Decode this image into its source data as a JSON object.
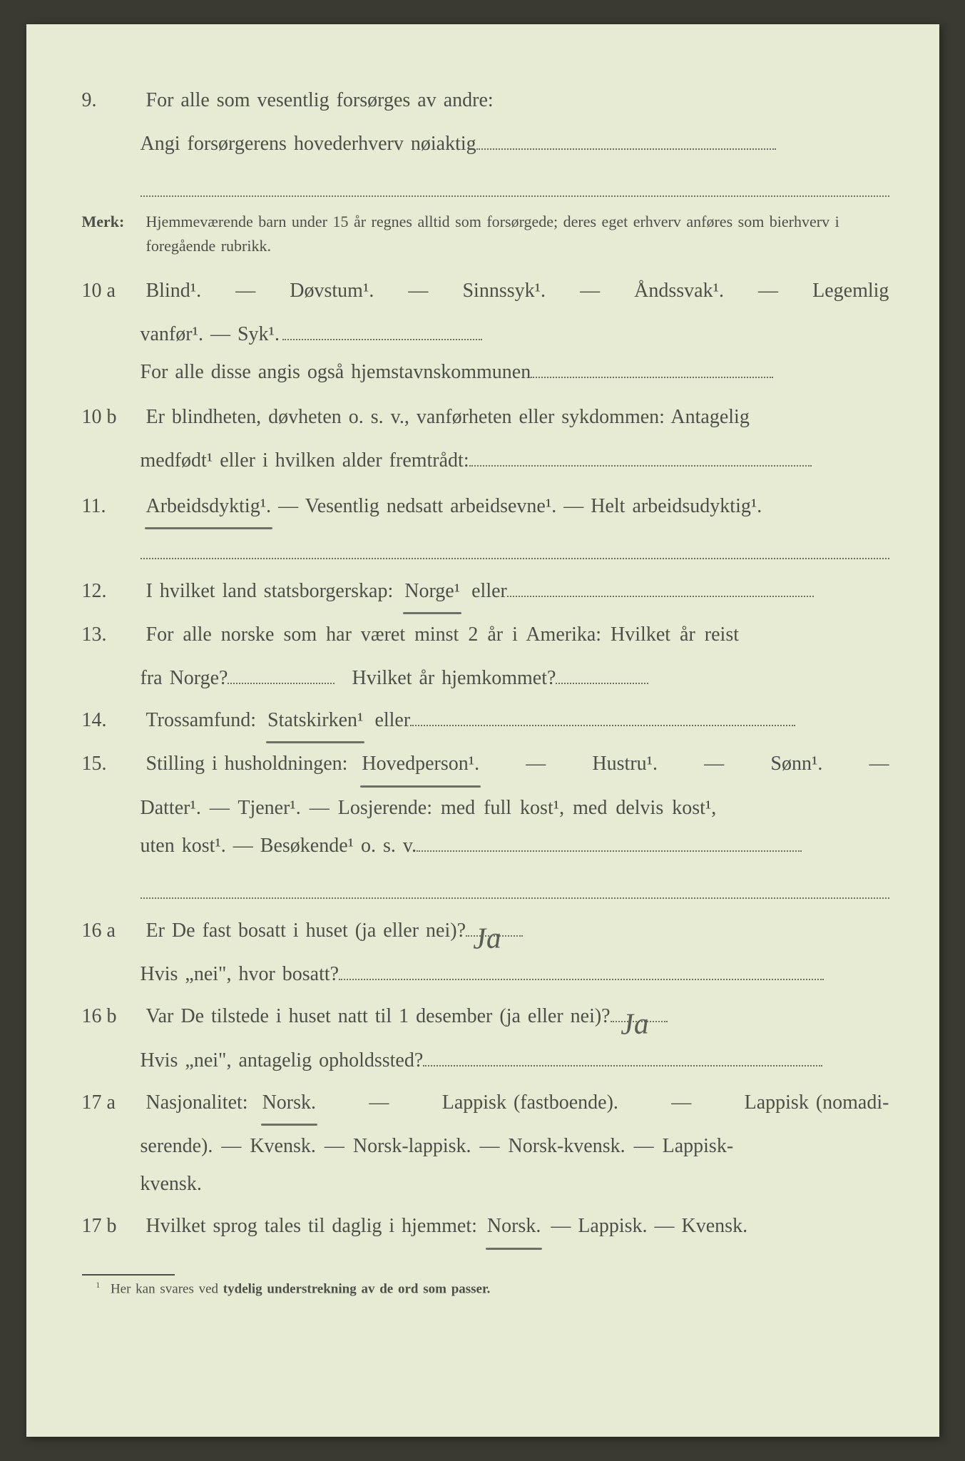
{
  "colors": {
    "paper": "#e8ebd4",
    "text": "#4a5048",
    "dotted": "#6a7060",
    "pencil": "#6b7168",
    "handwriting": "#5a5f56",
    "background": "#3a3a32"
  },
  "typography": {
    "body_fontsize": 28,
    "merk_fontsize": 22,
    "footnote_fontsize": 19,
    "handwriting_fontsize": 42,
    "font_family": "Georgia, Times New Roman, serif"
  },
  "q9": {
    "num": "9.",
    "line1": "For alle som vesentlig forsørges av andre:",
    "line2_pre": "Angi forsørgerens hovederhverv nøiaktig"
  },
  "merk": {
    "label": "Merk:",
    "text": "Hjemmeværende barn under 15 år regnes alltid som forsørgede; deres eget erhverv anføres som bierhverv i foregående rubrikk."
  },
  "q10a": {
    "num": "10 a",
    "opts": [
      "Blind¹.",
      "Døvstum¹.",
      "Sinnssyk¹.",
      "Åndssvak¹.",
      "Legemlig"
    ],
    "line2": "vanfør¹. — Syk¹.",
    "line3_pre": "For alle disse angis også hjemstavnskommunen"
  },
  "q10b": {
    "num": "10 b",
    "line1": "Er blindheten, døvheten o. s. v., vanførheten eller sykdommen: Antagelig",
    "line2_pre": "medfødt¹ eller i hvilken alder fremtrådt:"
  },
  "q11": {
    "num": "11.",
    "a": "Arbeidsdyktig¹.",
    "b": "Vesentlig nedsatt arbeidsevne¹.",
    "c": "Helt arbeidsudyktig¹."
  },
  "q12": {
    "num": "12.",
    "pre": "I hvilket land statsborgerskap:",
    "opt": "Norge¹",
    "post": "eller"
  },
  "q13": {
    "num": "13.",
    "line1": "For alle norske som har været minst 2 år i Amerika: Hvilket år reist",
    "line2a": "fra Norge?",
    "line2b": "Hvilket år hjemkommet?"
  },
  "q14": {
    "num": "14.",
    "pre": "Trossamfund:",
    "opt": "Statskirken¹",
    "post": "eller"
  },
  "q15": {
    "num": "15.",
    "pre": "Stilling i husholdningen:",
    "opt1": "Hovedperson¹.",
    "rest1": "Hustru¹. — Sønn¹. —",
    "line2": "Datter¹. — Tjener¹. — Losjerende: med full kost¹, med delvis kost¹,",
    "line3": "uten kost¹. — Besøkende¹ o. s. v."
  },
  "q16a": {
    "num": "16 a",
    "q": "Er De fast bosatt i huset (ja eller nei)?",
    "ans": "Ja",
    "sub": "Hvis „nei\", hvor bosatt?"
  },
  "q16b": {
    "num": "16 b",
    "q": "Var De tilstede i huset natt til 1 desember (ja eller nei)?",
    "ans": "Ja",
    "sub": "Hvis „nei\", antagelig opholdssted?"
  },
  "q17a": {
    "num": "17 a",
    "pre": "Nasjonalitet:",
    "opt": "Norsk.",
    "rest1": "Lappisk (fastboende). — Lappisk (nomadi-",
    "line2": "serende). — Kvensk. — Norsk-lappisk. — Norsk-kvensk. — Lappisk-",
    "line3": "kvensk."
  },
  "q17b": {
    "num": "17 b",
    "pre": "Hvilket sprog tales til daglig i hjemmet:",
    "opt": "Norsk.",
    "rest": "Lappisk. — Kvensk."
  },
  "footnote": {
    "num": "1",
    "pre": "Her kan svares ved",
    "bold": "tydelig understrekning av de ord som passer."
  }
}
